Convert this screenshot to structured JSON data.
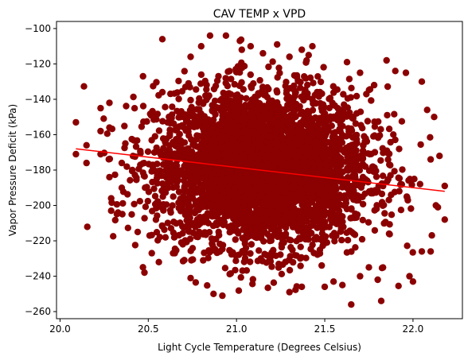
{
  "chart_data": {
    "type": "scatter",
    "title": "CAV TEMP x VPD",
    "xlabel": "Light Cycle Temperature (Degrees Celsius)",
    "ylabel": "Vapor Pressure Deficit (kPa)",
    "xlim": [
      19.98,
      22.28
    ],
    "ylim": [
      -264,
      -96
    ],
    "xticks": [
      20.0,
      20.5,
      21.0,
      21.5,
      22.0
    ],
    "xtick_labels": [
      "20.0",
      "20.5",
      "21.0",
      "21.5",
      "22.0"
    ],
    "yticks": [
      -260,
      -240,
      -220,
      -200,
      -180,
      -160,
      -140,
      -120,
      -100
    ],
    "ytick_labels": [
      "−260",
      "−240",
      "−220",
      "−200",
      "−180",
      "−160",
      "−140",
      "−120",
      "−100"
    ],
    "grid": false,
    "point_color": "#8b0000",
    "trend_color": "#ff0000",
    "distribution": {
      "x_mean": 21.15,
      "x_sd": 0.3,
      "y_mean": -179,
      "y_sd": 22,
      "point_count": 4000
    },
    "points": [
      [
        20.09,
        -153
      ],
      [
        20.09,
        -171
      ],
      [
        20.15,
        -166
      ],
      [
        20.15,
        -176
      ],
      [
        20.23,
        -145
      ],
      [
        20.23,
        -158
      ],
      [
        20.23,
        -171
      ],
      [
        20.28,
        -142
      ],
      [
        20.28,
        -156
      ],
      [
        20.28,
        -184
      ],
      [
        20.29,
        -196
      ],
      [
        20.29,
        -203
      ],
      [
        20.35,
        -176
      ],
      [
        20.35,
        -190
      ],
      [
        20.37,
        -165
      ],
      [
        20.41,
        -180
      ],
      [
        20.44,
        -215
      ],
      [
        20.47,
        -127
      ],
      [
        20.52,
        -227
      ],
      [
        20.56,
        -232
      ],
      [
        20.58,
        -106
      ],
      [
        20.65,
        -227
      ],
      [
        20.74,
        -116
      ],
      [
        20.8,
        -110
      ],
      [
        20.85,
        -104
      ],
      [
        20.87,
        -250
      ],
      [
        20.94,
        -104
      ],
      [
        20.92,
        -251
      ],
      [
        21.03,
        -112
      ],
      [
        21.08,
        -110
      ],
      [
        21.15,
        -114
      ],
      [
        21.23,
        -109
      ],
      [
        21.3,
        -116
      ],
      [
        21.37,
        -112
      ],
      [
        21.43,
        -110
      ],
      [
        21.3,
        -249
      ],
      [
        21.37,
        -246
      ],
      [
        21.5,
        -246
      ],
      [
        21.55,
        -243
      ],
      [
        21.6,
        -245
      ],
      [
        21.65,
        -256
      ],
      [
        21.7,
        -240
      ],
      [
        21.75,
        -235
      ],
      [
        21.8,
        -242
      ],
      [
        21.82,
        -254
      ],
      [
        21.7,
        -125
      ],
      [
        21.78,
        -132
      ],
      [
        21.85,
        -118
      ],
      [
        21.9,
        -124
      ],
      [
        21.96,
        -125
      ],
      [
        21.98,
        -240
      ],
      [
        22.0,
        -243
      ],
      [
        22.05,
        -226
      ],
      [
        22.1,
        -226
      ],
      [
        22.13,
        -200
      ],
      [
        22.18,
        -189
      ],
      [
        22.18,
        -208
      ],
      [
        22.15,
        -172
      ],
      [
        22.12,
        -150
      ],
      [
        22.08,
        -146
      ],
      [
        22.05,
        -130
      ],
      [
        22.1,
        -174
      ]
    ],
    "trendline": {
      "x": [
        20.09,
        22.18
      ],
      "y": [
        -168,
        -192
      ]
    }
  }
}
